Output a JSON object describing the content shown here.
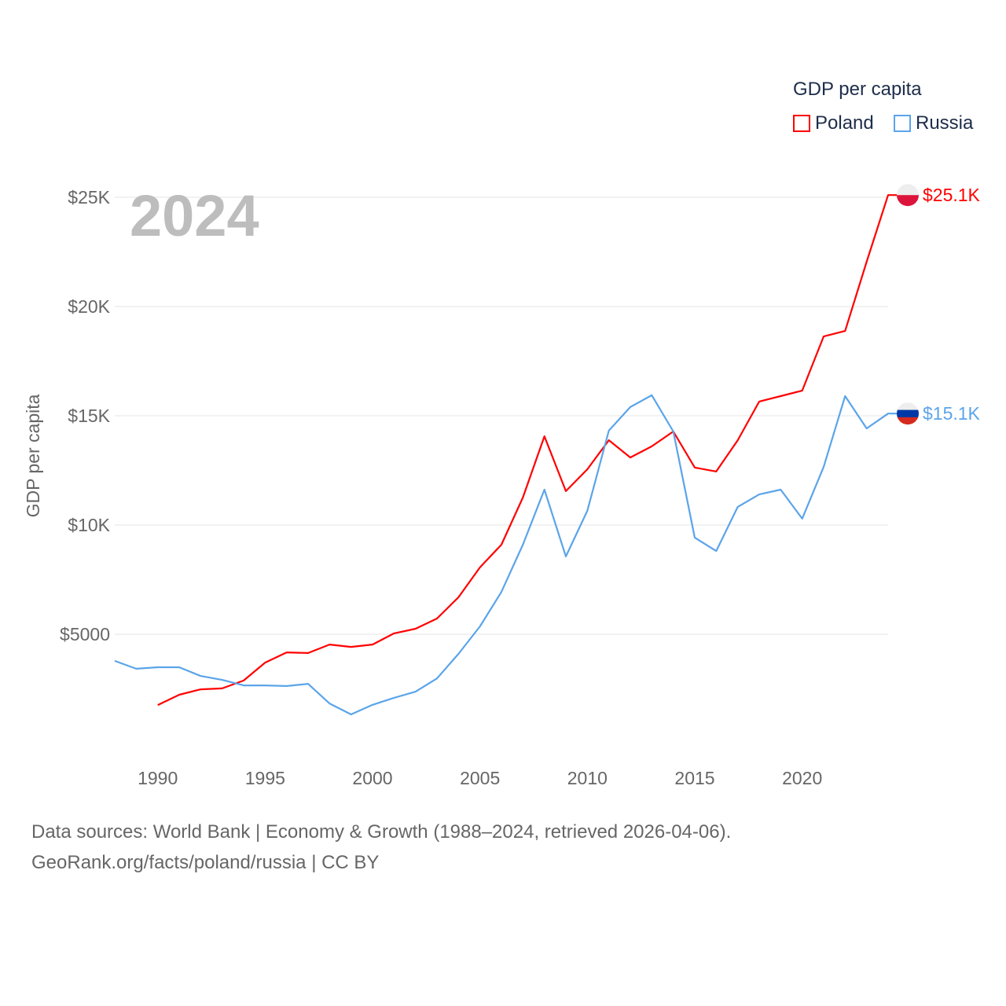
{
  "chart_data": {
    "type": "line",
    "title": "GDP per capita",
    "year_label": "2024",
    "ylabel": "GDP per capita",
    "xlabel": "",
    "xlim": [
      1988,
      2024
    ],
    "ylim": [
      0,
      25000
    ],
    "x_ticks": [
      1990,
      1995,
      2000,
      2005,
      2010,
      2015,
      2020
    ],
    "y_ticks": [
      {
        "v": 5000,
        "label": "$5000"
      },
      {
        "v": 10000,
        "label": "$10K"
      },
      {
        "v": 15000,
        "label": "$15K"
      },
      {
        "v": 20000,
        "label": "$20K"
      },
      {
        "v": 25000,
        "label": "$25K"
      }
    ],
    "grid": true,
    "legend_placement": "top-right",
    "series": [
      {
        "name": "Poland",
        "color": "#ff0000",
        "end_label": "$25.1K",
        "start": 1990,
        "values": [
          1760,
          2230,
          2480,
          2520,
          2880,
          3700,
          4170,
          4140,
          4530,
          4420,
          4530,
          5040,
          5250,
          5720,
          6690,
          8060,
          9100,
          11260,
          14060,
          11550,
          12550,
          13880,
          13090,
          13600,
          14280,
          12630,
          12450,
          13880,
          15650,
          15900,
          16150,
          18630,
          18880,
          22050,
          25100
        ]
      },
      {
        "name": "Russia",
        "color": "#5ba4ea",
        "end_label": "$15.1K",
        "start": 1988,
        "values": [
          3780,
          3420,
          3490,
          3490,
          3090,
          2910,
          2660,
          2660,
          2630,
          2730,
          1830,
          1330,
          1770,
          2090,
          2370,
          2980,
          4100,
          5360,
          6940,
          9100,
          11620,
          8560,
          10650,
          14320,
          15400,
          15940,
          14280,
          9420,
          8810,
          10830,
          11400,
          11620,
          10290,
          12660,
          15900,
          14420,
          15100
        ]
      }
    ]
  },
  "footer": {
    "line1": "Data sources: World Bank | Economy & Growth (1988–2024, retrieved 2026-04-06).",
    "line2": "GeoRank.org/facts/poland/russia | CC BY"
  }
}
